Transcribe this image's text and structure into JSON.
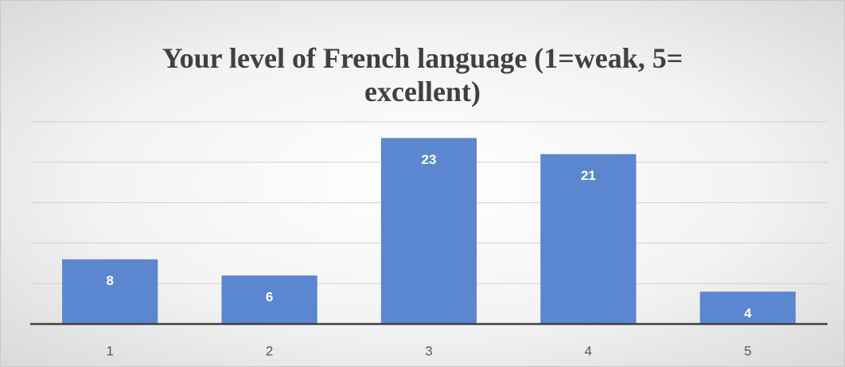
{
  "chart_data": {
    "type": "bar",
    "title": "Your level of French language (1=weak, 5= excellent)",
    "categories": [
      "1",
      "2",
      "3",
      "4",
      "5"
    ],
    "values": [
      8,
      6,
      23,
      21,
      4
    ],
    "color": "#5b87d0",
    "ylim": [
      0,
      25
    ],
    "yticks": [
      0,
      5,
      10,
      15,
      20,
      25
    ],
    "grid": true
  }
}
